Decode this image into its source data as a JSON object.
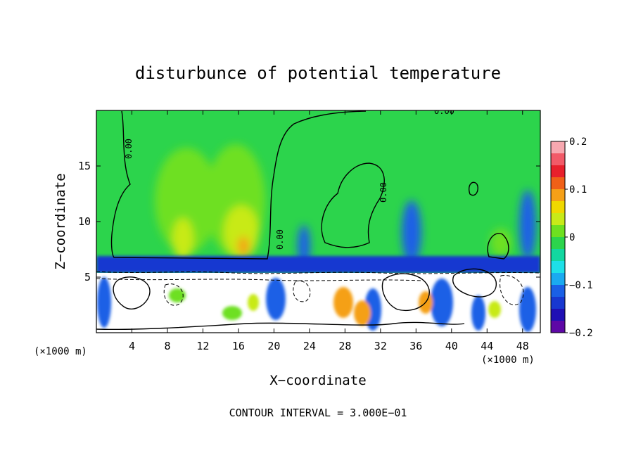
{
  "chart_data": {
    "type": "heatmap",
    "title": "disturbunce of potential temperature",
    "xlabel": "X−coordinate",
    "ylabel": "Z−coordinate",
    "x_unit_left": "(×1000 m)",
    "x_unit_right": "(×1000 m)",
    "footnote": "CONTOUR INTERVAL = 3.000E−01",
    "contour_label": "0.00",
    "xlim": [
      0,
      50
    ],
    "ylim": [
      0,
      20
    ],
    "x_ticks": [
      4,
      8,
      12,
      16,
      20,
      24,
      28,
      32,
      36,
      40,
      44,
      48
    ],
    "x_tick_labels": [
      "4",
      "8",
      "12",
      "16",
      "20",
      "24",
      "28",
      "32",
      "36",
      "40",
      "44",
      "48"
    ],
    "y_ticks": [
      5,
      10,
      15
    ],
    "y_tick_labels": [
      "5",
      "10",
      "15"
    ],
    "colorbar": {
      "range": [
        -0.2,
        0.2
      ],
      "ticks": [
        0.2,
        0.1,
        0,
        -0.1,
        -0.2
      ],
      "tick_labels": [
        "0.2",
        "0.1",
        "0",
        "−0.1",
        "−0.2"
      ],
      "colors": [
        "#f7a8b0",
        "#f25a68",
        "#e8202c",
        "#f06018",
        "#f5a018",
        "#f0d800",
        "#c8ea18",
        "#6ee020",
        "#2cd44c",
        "#12d7a0",
        "#1ee0e8",
        "#1aaaf0",
        "#1a60e6",
        "#1838d0",
        "#1f10b4",
        "#5e08a6"
      ]
    },
    "field_colors": {
      "background": "#2cd44c",
      "weak_positive": "#6ee020",
      "positive": "#c8ea18",
      "strong_positive": "#f5a018",
      "negative": "#1a60e6",
      "cold_layer": "#1838d0",
      "undefined": "#ffffff"
    }
  }
}
